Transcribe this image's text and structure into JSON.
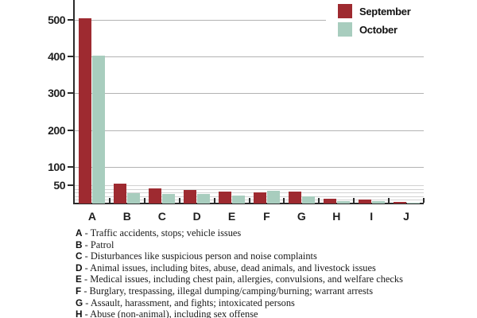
{
  "chart_data": {
    "type": "bar",
    "categories": [
      "A",
      "B",
      "C",
      "D",
      "E",
      "F",
      "G",
      "H",
      "I",
      "J"
    ],
    "series": [
      {
        "name": "September",
        "color": "#9e2a30",
        "values": [
          505,
          55,
          42,
          37,
          33,
          30,
          32,
          13,
          11,
          5
        ]
      },
      {
        "name": "October",
        "color": "#a8cdbe",
        "values": [
          403,
          29,
          25,
          26,
          21,
          34,
          20,
          7,
          6,
          1
        ]
      }
    ],
    "title": "",
    "xlabel": "",
    "ylabel": "",
    "ylim": [
      0,
      540
    ],
    "yticks_labeled": [
      50,
      100,
      200,
      300,
      400,
      500
    ],
    "yticks_minor": [
      10,
      20,
      30,
      40,
      50
    ],
    "yticks_major": [
      100,
      200,
      300,
      400,
      500
    ],
    "grid": true,
    "legend_position": "top-right"
  },
  "key": {
    "separator": " - ",
    "items": [
      {
        "letter": "A",
        "description": "Traffic accidents, stops; vehicle issues"
      },
      {
        "letter": "B",
        "description": "Patrol"
      },
      {
        "letter": "C",
        "description": "Disturbances like suspicious person and noise complaints"
      },
      {
        "letter": "D",
        "description": "Animal issues, including bites, abuse, dead animals, and livestock issues"
      },
      {
        "letter": "E",
        "description": "Medical issues, including chest pain, allergies, convulsions, and welfare checks"
      },
      {
        "letter": "F",
        "description": "Burglary, trespassing, illegal dumping/camping/burning; warrant arrests"
      },
      {
        "letter": "G",
        "description": "Assault, harassment, and fights; intoxicated persons"
      },
      {
        "letter": "H",
        "description": "Abuse (non-animal), including sex offense"
      }
    ]
  },
  "colors": {
    "september": "#9e2a30",
    "october": "#a8cdbe",
    "grid_major": "#b3b3b3",
    "grid_minor": "#d2d2d2",
    "axis": "#2b2b2b",
    "text": "#1a1a1a"
  }
}
